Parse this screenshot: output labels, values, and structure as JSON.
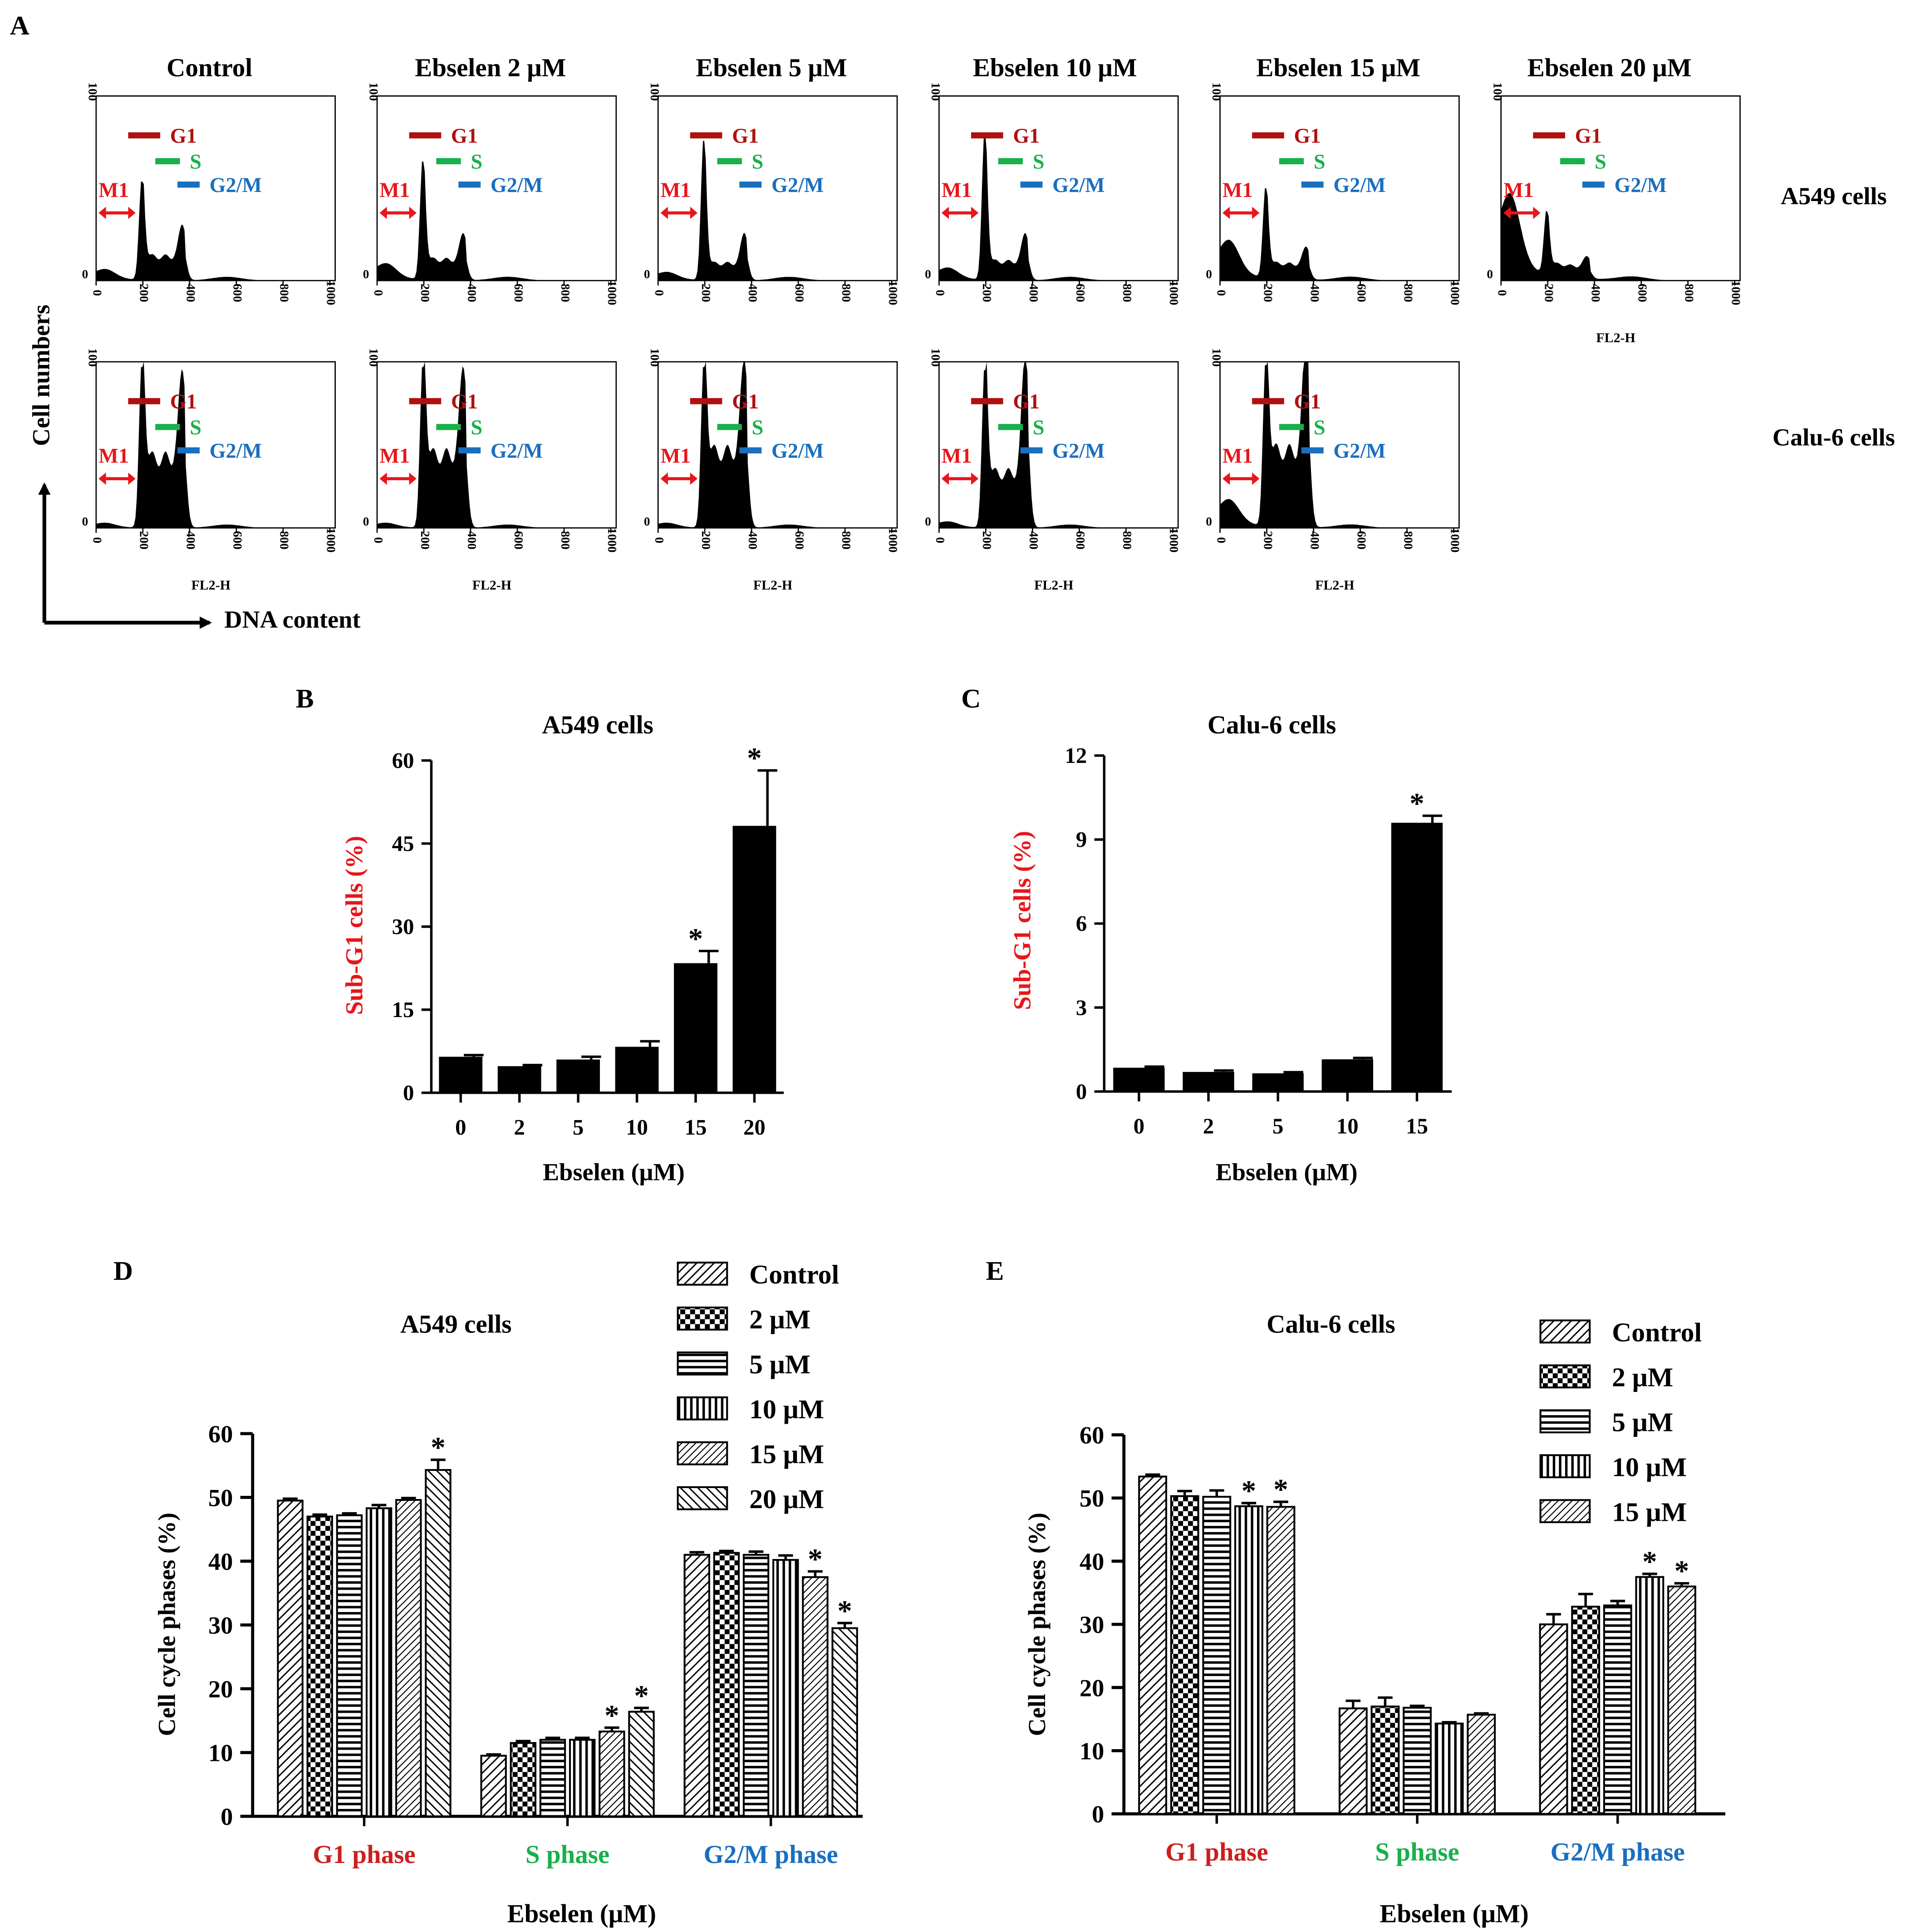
{
  "colors": {
    "ink": "#000000",
    "red": "#cc1f1f",
    "darkred": "#b01010",
    "green": "#18b04a",
    "blue": "#1a6fbf",
    "arrow_red": "#e8161a"
  },
  "panel_labels": [
    "A",
    "B",
    "C",
    "D",
    "E"
  ],
  "panel_a": {
    "titles": [
      "Control",
      "Ebselen 2 μM",
      "Ebselen 5 μM",
      "Ebselen 10 μM",
      "Ebselen 15 μM",
      "Ebselen 20 μM"
    ],
    "row_labels": [
      "A549 cells",
      "Calu-6 cells"
    ],
    "y_axis_label": "Cell numbers",
    "x_axis_label": "DNA content",
    "hist_xlabel": "FL2-H",
    "gate_labels": {
      "g1": "G1",
      "s": "S",
      "g2m": "G2/M",
      "m1": "M1"
    },
    "y_ticks": [
      "0",
      "100"
    ],
    "x_ticks": [
      "0",
      "200",
      "400",
      "600",
      "800",
      "1000"
    ]
  },
  "chart_data": [
    {
      "id": "B",
      "type": "bar",
      "title": "A549 cells",
      "xlabel": "Ebselen (μM)",
      "ylabel": "Sub-G1 cells (%)",
      "categories": [
        "0",
        "2",
        "5",
        "10",
        "15",
        "20"
      ],
      "values": [
        6.5,
        4.8,
        6.0,
        8.3,
        23.4,
        48.2
      ],
      "errors": [
        0.3,
        0.2,
        0.5,
        1.0,
        2.2,
        10.0
      ],
      "significant": [
        false,
        false,
        false,
        false,
        true,
        true
      ],
      "sig_marker": "*",
      "ylim": [
        0,
        60
      ],
      "yticks": [
        "0",
        "15",
        "30",
        "45",
        "60"
      ]
    },
    {
      "id": "C",
      "type": "bar",
      "title": "Calu-6 cells",
      "xlabel": "Ebselen (μM)",
      "ylabel": "Sub-G1 cells (%)",
      "categories": [
        "0",
        "2",
        "5",
        "10",
        "15"
      ],
      "values": [
        0.85,
        0.7,
        0.65,
        1.15,
        9.6
      ],
      "errors": [
        0.04,
        0.05,
        0.04,
        0.05,
        0.25
      ],
      "significant": [
        false,
        false,
        false,
        false,
        true
      ],
      "sig_marker": "*",
      "ylim": [
        0,
        12
      ],
      "yticks": [
        "0",
        "3",
        "6",
        "9",
        "12"
      ]
    },
    {
      "id": "D",
      "type": "bar",
      "title": "A549 cells",
      "xlabel": "Ebselen (μM)",
      "ylabel": "Cell cycle phases (%)",
      "categories": [
        "G1 phase",
        "S phase",
        "G2/M phase"
      ],
      "series": [
        {
          "name": "Control",
          "pattern": "diag",
          "values": [
            49.5,
            9.5,
            41.0
          ],
          "errors": [
            0.3,
            0.2,
            0.4
          ],
          "significant": [
            false,
            false,
            false
          ]
        },
        {
          "name": "2 μM",
          "pattern": "checker",
          "values": [
            47.0,
            11.5,
            41.3
          ],
          "errors": [
            0.3,
            0.3,
            0.3
          ],
          "significant": [
            false,
            false,
            false
          ]
        },
        {
          "name": "5 μM",
          "pattern": "hstripe",
          "values": [
            47.2,
            12.0,
            41.0
          ],
          "errors": [
            0.3,
            0.3,
            0.5
          ],
          "significant": [
            false,
            false,
            false
          ]
        },
        {
          "name": "10 μM",
          "pattern": "vstripe",
          "values": [
            48.3,
            12.0,
            40.2
          ],
          "errors": [
            0.5,
            0.3,
            0.7
          ],
          "significant": [
            false,
            false,
            false
          ]
        },
        {
          "name": "15 μM",
          "pattern": "diag2",
          "values": [
            49.6,
            13.3,
            37.5
          ],
          "errors": [
            0.3,
            0.6,
            0.9
          ],
          "significant": [
            false,
            true,
            true
          ]
        },
        {
          "name": "20 μM",
          "pattern": "backdiag",
          "values": [
            54.3,
            16.4,
            29.5
          ],
          "errors": [
            1.6,
            0.6,
            0.8
          ],
          "significant": [
            true,
            true,
            true
          ]
        }
      ],
      "sig_marker": "*",
      "ylim": [
        0,
        60
      ],
      "yticks": [
        "0",
        "10",
        "20",
        "30",
        "40",
        "50",
        "60"
      ]
    },
    {
      "id": "E",
      "type": "bar",
      "title": "Calu-6 cells",
      "xlabel": "Ebselen (μM)",
      "ylabel": "Cell cycle phases (%)",
      "categories": [
        "G1 phase",
        "S phase",
        "G2/M phase"
      ],
      "series": [
        {
          "name": "Control",
          "pattern": "diag",
          "values": [
            53.4,
            16.7,
            30.0
          ],
          "errors": [
            0.3,
            1.2,
            1.6
          ],
          "significant": [
            false,
            false,
            false
          ]
        },
        {
          "name": "2 μM",
          "pattern": "checker",
          "values": [
            50.3,
            17.0,
            32.8
          ],
          "errors": [
            0.8,
            1.4,
            2.0
          ],
          "significant": [
            false,
            false,
            false
          ]
        },
        {
          "name": "5 μM",
          "pattern": "hstripe",
          "values": [
            50.2,
            16.8,
            33.0
          ],
          "errors": [
            1.0,
            0.3,
            0.7
          ],
          "significant": [
            false,
            false,
            false
          ]
        },
        {
          "name": "10 μM",
          "pattern": "vstripe",
          "values": [
            48.7,
            14.3,
            37.5
          ],
          "errors": [
            0.5,
            0.2,
            0.5
          ],
          "significant": [
            true,
            false,
            true
          ]
        },
        {
          "name": "15 μM",
          "pattern": "diag2",
          "values": [
            48.6,
            15.7,
            36.0
          ],
          "errors": [
            0.8,
            0.2,
            0.5
          ],
          "significant": [
            true,
            false,
            true
          ]
        }
      ],
      "sig_marker": "*",
      "ylim": [
        0,
        60
      ],
      "yticks": [
        "0",
        "10",
        "20",
        "30",
        "40",
        "50",
        "60"
      ]
    }
  ]
}
